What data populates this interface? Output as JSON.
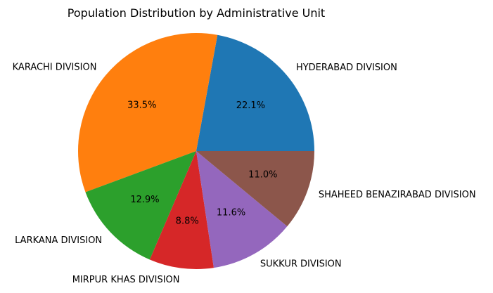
{
  "chart_data": {
    "type": "pie",
    "title": "Population Distribution by Administrative Unit",
    "start_angle_deg": 0,
    "direction": "counterclockwise",
    "slices": [
      {
        "label": "HYDERABAD DIVISION",
        "value": 22.1,
        "pct_label": "22.1%",
        "color": "#1f77b4"
      },
      {
        "label": "KARACHI DIVISION",
        "value": 33.5,
        "pct_label": "33.5%",
        "color": "#ff7f0e"
      },
      {
        "label": "LARKANA DIVISION",
        "value": 12.9,
        "pct_label": "12.9%",
        "color": "#2ca02c"
      },
      {
        "label": "MIRPUR KHAS DIVISION",
        "value": 8.8,
        "pct_label": "8.8%",
        "color": "#d62728"
      },
      {
        "label": "SUKKUR DIVISION",
        "value": 11.6,
        "pct_label": "11.6%",
        "color": "#9467bd"
      },
      {
        "label": "SHAHEED BENAZIRABAD DIVISION",
        "value": 11.0,
        "pct_label": "11.0%",
        "color": "#8c564b"
      }
    ]
  }
}
